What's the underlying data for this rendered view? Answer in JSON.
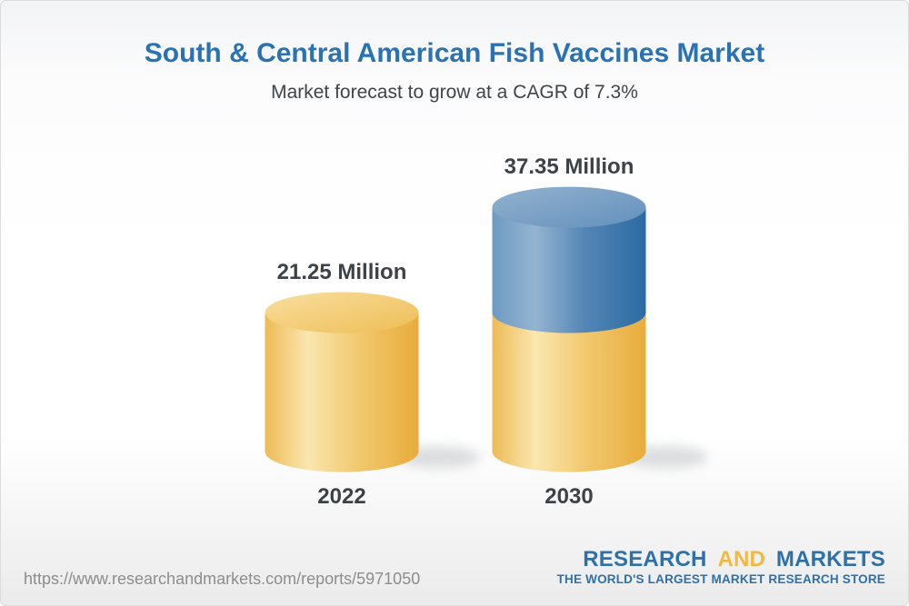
{
  "chart_data": {
    "type": "bar",
    "title": "South & Central American Fish Vaccines Market",
    "subtitle": "Market forecast to grow at a CAGR of 7.3%",
    "cagr_percent": 7.3,
    "categories": [
      "2022",
      "2030"
    ],
    "values": [
      21.25,
      37.35
    ],
    "value_labels": [
      "21.25 Million",
      "37.35 Million"
    ],
    "unit": "Million",
    "ylim": [
      0,
      40
    ],
    "grid": false,
    "legend": false,
    "bar_style": "3d-cylinder; 2030 bar shows growth above 2022 level as blue segment",
    "colors": {
      "base_segment_gold": "#F0C261",
      "growth_segment_blue": "#4C80AF",
      "title_blue": "#2B72B2",
      "label_dark": "#3D4247"
    }
  },
  "footer": {
    "url": "https://www.researchandmarkets.com/reports/5971050",
    "logo": {
      "line1_part1": "RESEARCH",
      "line1_part2": "AND",
      "line1_part3": "MARKETS",
      "tagline": "THE WORLD'S LARGEST MARKET RESEARCH STORE",
      "brand_blue": "#2E71A8",
      "brand_gold": "#F2B841"
    }
  }
}
